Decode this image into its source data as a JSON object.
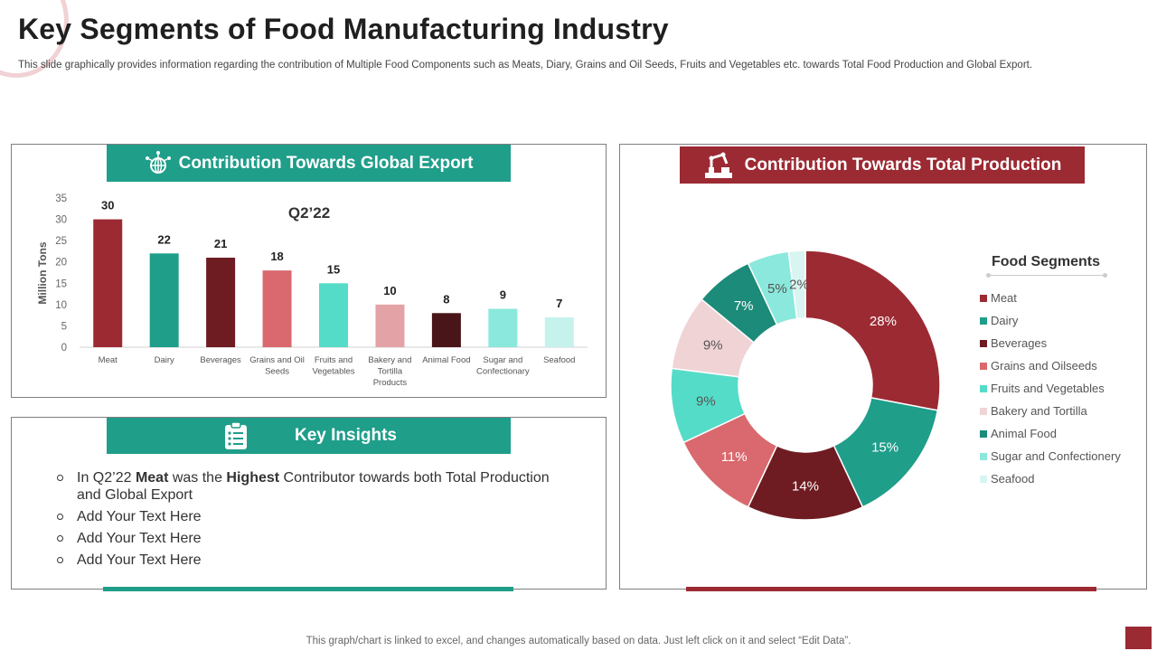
{
  "page": {
    "title": "Key Segments of Food Manufacturing Industry",
    "subtitle": "This slide graphically provides information regarding the contribution of Multiple Food Components such as Meats, Diary, Grains and Oil Seeds, Fruits and Vegetables etc. towards Total Food Production and Global Export.",
    "footer": "This graph/chart is linked to excel,  and changes automatically based on data. Just left click on it and select “Edit Data”."
  },
  "export_panel": {
    "header": "Contribution Towards Global Export",
    "icon": "globe-network-icon"
  },
  "production_panel": {
    "header": "Contribution Towards Total Production",
    "icon": "factory-robot-arm-icon"
  },
  "insights_panel": {
    "header": "Key Insights",
    "icon": "clipboard-list-icon",
    "items": [
      {
        "prefix": "In Q2’22 ",
        "b1": "Meat",
        "mid": " was the ",
        "b2": "Highest",
        "suffix": " Contributor towards both Total Production and Global Export"
      },
      {
        "text": "Add Your Text Here"
      },
      {
        "text": "Add Your Text Here"
      },
      {
        "text": "Add Your Text Here"
      }
    ]
  },
  "colors": {
    "teal": "#1f9e8a",
    "red": "#9c2a33",
    "segments": [
      "#9c2a33",
      "#1f9e8a",
      "#6e1c22",
      "#d9696e",
      "#55dcc8",
      "#e3a3a6",
      "#4a1519",
      "#8ae8dc",
      "#c6f2ec"
    ],
    "donut_segments": [
      "#9c2a33",
      "#1f9e8a",
      "#6e1c22",
      "#d9696e",
      "#55dcc8",
      "#f0d3d5",
      "#1c8b79",
      "#8ae8dc",
      "#d8f5f1"
    ]
  },
  "chart_data": [
    {
      "type": "bar",
      "title": "Q2’22",
      "xlabel": "",
      "ylabel": "Million Tons",
      "ylim": [
        0,
        35
      ],
      "yticks": [
        0,
        5,
        10,
        15,
        20,
        25,
        30,
        35
      ],
      "grid": false,
      "categories": [
        "Meat",
        "Dairy",
        "Beverages",
        "Grains and Oil Seeds",
        "Fruits and Vegetables",
        "Bakery and Tortilla Products",
        "Animal Food",
        "Sugar and Confectionary",
        "Seafood"
      ],
      "category_lines": [
        [
          "Meat"
        ],
        [
          "Dairy"
        ],
        [
          "Beverages"
        ],
        [
          "Grains and Oil",
          "Seeds"
        ],
        [
          "Fruits and",
          "Vegetables"
        ],
        [
          "Bakery and",
          "Tortilla",
          "Products"
        ],
        [
          "Animal Food"
        ],
        [
          "Sugar and",
          "Confectionary"
        ],
        [
          "Seafood"
        ]
      ],
      "values": [
        30,
        22,
        21,
        18,
        15,
        10,
        8,
        9,
        7
      ]
    },
    {
      "type": "pie",
      "subtype": "donut",
      "legend_title": "Food Segments",
      "legend_position": "right",
      "labels": [
        "Meat",
        "Dairy",
        "Beverages",
        "Grains and Oilseeds",
        "Fruits and Vegetables",
        "Bakery and Tortilla",
        "Animal Food",
        "Sugar and Confectionery",
        "Seafood"
      ],
      "values": [
        28,
        15,
        14,
        11,
        9,
        9,
        7,
        5,
        2
      ],
      "value_labels": [
        "28%",
        "15%",
        "14%",
        "11%",
        "9%",
        "9%",
        "7%",
        "5%",
        "2%"
      ]
    }
  ]
}
